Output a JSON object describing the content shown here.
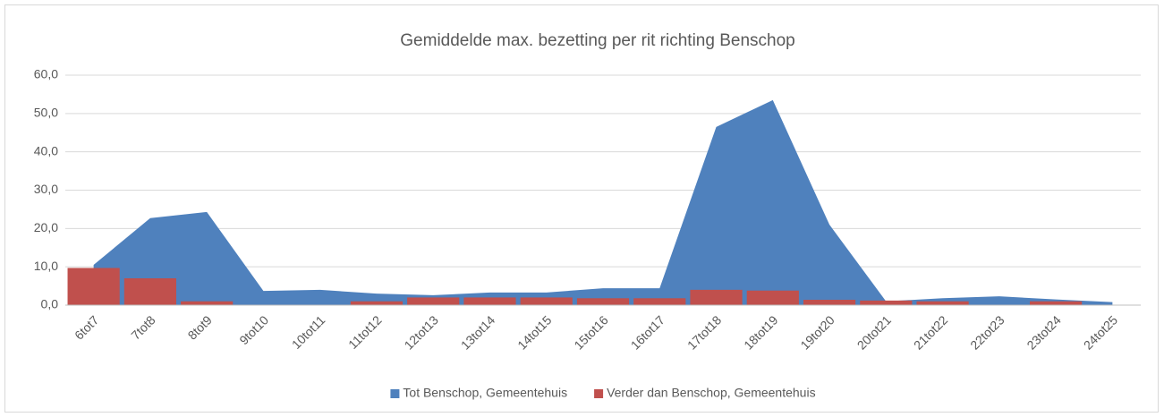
{
  "chart_data": {
    "type": "area_bar",
    "title": "Gemiddelde max. bezetting per rit richting Benschop",
    "categories": [
      "6tot7",
      "7tot8",
      "8tot9",
      "9tot10",
      "10tot11",
      "11tot12",
      "12tot13",
      "13tot14",
      "14tot15",
      "15tot16",
      "16tot17",
      "17tot18",
      "18tot19",
      "19tot20",
      "20tot21",
      "21tot22",
      "22tot23",
      "23tot24",
      "24tot25"
    ],
    "series": [
      {
        "name": "Tot Benschop, Gemeentehuis",
        "color": "#4f81bd",
        "type": "area",
        "values": [
          10.5,
          22.7,
          24.3,
          3.7,
          4.0,
          3.0,
          2.6,
          3.3,
          3.3,
          4.4,
          4.4,
          46.5,
          53.5,
          21.0,
          1.0,
          1.8,
          2.3,
          1.5,
          0.8
        ]
      },
      {
        "name": "Verder dan Benschop, Gemeentehuis",
        "color": "#c0504d",
        "type": "bar",
        "values": [
          9.7,
          7.0,
          1.0,
          0,
          0,
          1.0,
          2.0,
          2.0,
          2.0,
          1.8,
          1.8,
          4.0,
          3.8,
          1.4,
          1.2,
          1.0,
          0,
          1.0,
          0
        ]
      }
    ],
    "ylim": [
      0,
      60
    ],
    "yticks": [
      {
        "value": 0,
        "label": "0,0"
      },
      {
        "value": 10,
        "label": "10,0"
      },
      {
        "value": 20,
        "label": "20,0"
      },
      {
        "value": 30,
        "label": "30,0"
      },
      {
        "value": 40,
        "label": "40,0"
      },
      {
        "value": 50,
        "label": "50,0"
      },
      {
        "value": 60,
        "label": "60,0"
      }
    ],
    "grid": true,
    "legend": "bottom"
  }
}
